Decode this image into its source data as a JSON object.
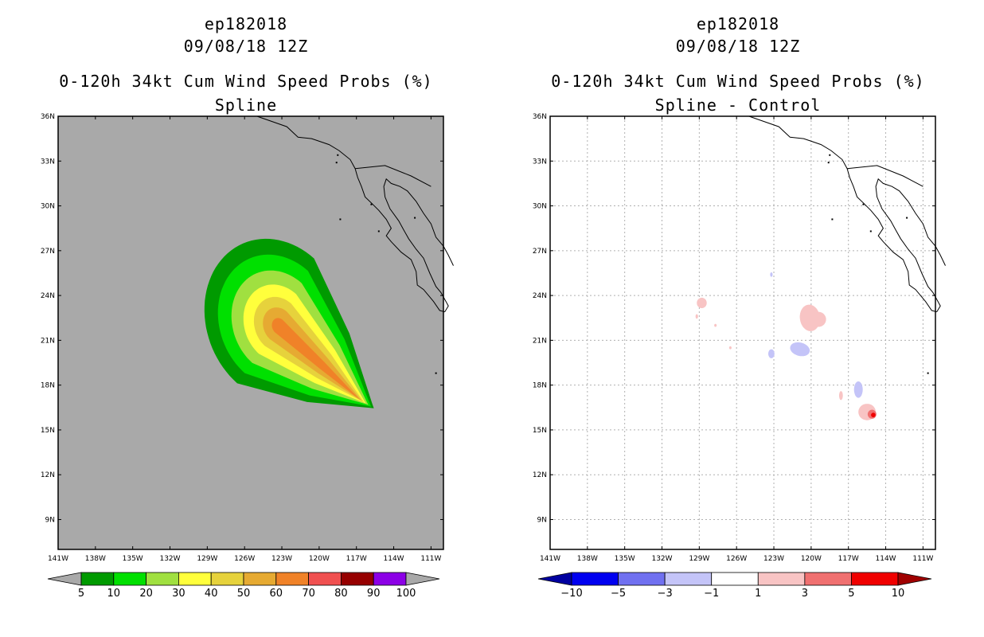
{
  "chart_data": [
    {
      "type": "heatmap",
      "storm_id": "ep182018",
      "datetime": "09/08/18 12Z",
      "title": "0-120h 34kt Cum Wind Speed Probs (%)",
      "subtitle": "Spline",
      "x_ticks": [
        "141W",
        "138W",
        "135W",
        "132W",
        "129W",
        "126W",
        "123W",
        "120W",
        "117W",
        "114W",
        "111W"
      ],
      "y_ticks": [
        "36N",
        "33N",
        "30N",
        "27N",
        "24N",
        "21N",
        "18N",
        "15N",
        "12N",
        "9N"
      ],
      "xlim": [
        -141,
        -110
      ],
      "ylim": [
        7,
        36
      ],
      "grid": false,
      "colorbar": {
        "labels": [
          "5",
          "10",
          "20",
          "30",
          "40",
          "50",
          "60",
          "70",
          "80",
          "90",
          "100"
        ],
        "colors": [
          "#009a00",
          "#00e000",
          "#a0e040",
          "#ffff3c",
          "#e6d23c",
          "#e6aa32",
          "#f08228",
          "#f05050",
          "#960000",
          "#8c00e6"
        ]
      },
      "contours": [
        {
          "level": 5,
          "color": "#009a00"
        },
        {
          "level": 10,
          "color": "#00e000"
        },
        {
          "level": 20,
          "color": "#a0e040"
        },
        {
          "level": 30,
          "color": "#ffff3c"
        },
        {
          "level": 40,
          "color": "#e6d23c"
        },
        {
          "level": 50,
          "color": "#e6aa32"
        },
        {
          "level": 60,
          "color": "#f08228"
        }
      ]
    },
    {
      "type": "heatmap",
      "storm_id": "ep182018",
      "datetime": "09/08/18 12Z",
      "title": "0-120h 34kt Cum Wind Speed Probs (%)",
      "subtitle": "Spline - Control",
      "x_ticks": [
        "141W",
        "138W",
        "135W",
        "132W",
        "129W",
        "126W",
        "123W",
        "120W",
        "117W",
        "114W",
        "111W"
      ],
      "y_ticks": [
        "36N",
        "33N",
        "30N",
        "27N",
        "24N",
        "21N",
        "18N",
        "15N",
        "12N",
        "9N"
      ],
      "xlim": [
        -141,
        -110
      ],
      "ylim": [
        7,
        36
      ],
      "grid": true,
      "colorbar": {
        "labels": [
          "−10",
          "−5",
          "−3",
          "−1",
          "1",
          "3",
          "5",
          "10"
        ],
        "colors": [
          "#0000a0",
          "#0000f0",
          "#7070f0",
          "#c4c4f8",
          "#ffffff",
          "#f8c4c4",
          "#f07070",
          "#f00000",
          "#a00000"
        ]
      }
    }
  ]
}
